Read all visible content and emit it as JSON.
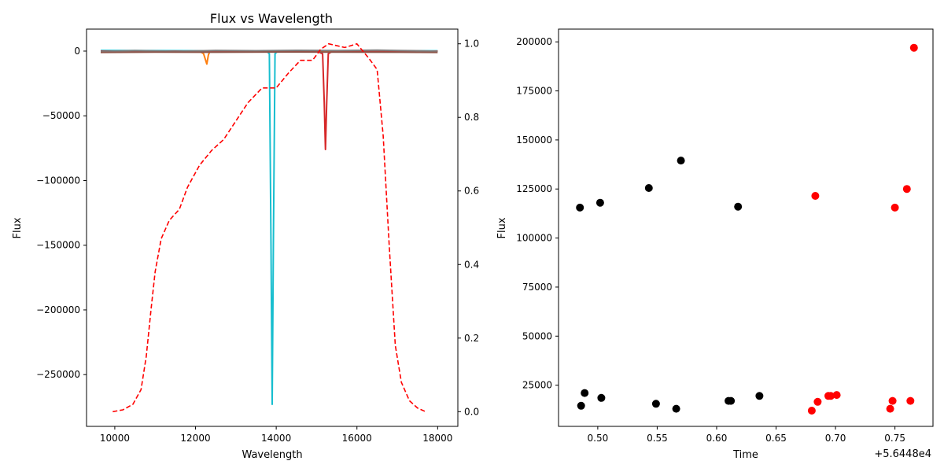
{
  "chart_data": [
    {
      "type": "line",
      "title": "Flux vs Wavelength",
      "xlabel": "Wavelength",
      "ylabel": "Flux",
      "xlim": [
        9300,
        18500
      ],
      "ylim": [
        -290000,
        17000
      ],
      "xticks": [
        10000,
        12000,
        14000,
        16000,
        18000
      ],
      "yticks": [
        0,
        -50000,
        -100000,
        -150000,
        -200000,
        -250000
      ],
      "xtick_labels": [
        "10000",
        "12000",
        "14000",
        "16000",
        "18000"
      ],
      "ytick_labels": [
        "0",
        "−50000",
        "−100000",
        "−150000",
        "−200000",
        "−250000"
      ],
      "secondary_ylim": [
        -0.04,
        1.04
      ],
      "secondary_yticks": [
        0.0,
        0.2,
        0.4,
        0.6,
        0.8,
        1.0
      ],
      "secondary_ytick_labels": [
        "0.0",
        "0.2",
        "0.4",
        "0.6",
        "0.8",
        "1.0"
      ],
      "series": [
        {
          "color": "#17becf",
          "style": "solid",
          "x": [
            9650,
            12000,
            13750,
            13830,
            13870,
            13900,
            13930,
            13970,
            14050,
            16000,
            18000
          ],
          "y": [
            500,
            300,
            200,
            -2000,
            -150000,
            -273000,
            -150000,
            -2000,
            200,
            300,
            200
          ]
        },
        {
          "color": "#ff7f0e",
          "style": "solid",
          "x": [
            9650,
            12100,
            12200,
            12280,
            12320,
            12360,
            12500,
            16000,
            18000
          ],
          "y": [
            0,
            0,
            -2000,
            -10000,
            -3000,
            0,
            0,
            0,
            0
          ]
        },
        {
          "color": "#d62728",
          "style": "solid",
          "x": [
            9650,
            15000,
            15150,
            15190,
            15220,
            15250,
            15290,
            15400,
            18000
          ],
          "y": [
            0,
            0,
            -2000,
            -40000,
            -76000,
            -40000,
            -2000,
            0,
            0
          ]
        },
        {
          "color": "#7f7f7f",
          "style": "solid",
          "x": [
            9650,
            10500,
            11500,
            12500,
            13500,
            14500,
            15500,
            16500,
            17500,
            18000
          ],
          "y": [
            -300,
            400,
            -200,
            500,
            300,
            600,
            400,
            700,
            300,
            -200
          ]
        },
        {
          "color": "#8c564b",
          "style": "solid",
          "x": [
            9650,
            11000,
            12500,
            14000,
            15500,
            17000,
            18000
          ],
          "y": [
            -1000,
            -800,
            -900,
            -700,
            -800,
            -900,
            -1000
          ]
        },
        {
          "color": "#ff0000",
          "style": "dashed",
          "axis": "secondary",
          "x": [
            9950,
            10200,
            10450,
            10650,
            10780,
            10900,
            11000,
            11150,
            11350,
            11600,
            11800,
            12100,
            12400,
            12700,
            13000,
            13300,
            13650,
            14000,
            14300,
            14600,
            14900,
            15100,
            15300,
            15700,
            16000,
            16300,
            16500,
            16650,
            16800,
            16950,
            17100,
            17300,
            17500,
            17700
          ],
          "y": [
            0.0,
            0.005,
            0.02,
            0.06,
            0.15,
            0.28,
            0.38,
            0.47,
            0.52,
            0.55,
            0.61,
            0.67,
            0.71,
            0.74,
            0.79,
            0.84,
            0.88,
            0.88,
            0.92,
            0.955,
            0.955,
            0.985,
            1.0,
            0.99,
            1.0,
            0.96,
            0.93,
            0.75,
            0.45,
            0.18,
            0.08,
            0.03,
            0.01,
            0.0
          ]
        }
      ]
    },
    {
      "type": "scatter",
      "xlabel": "Time",
      "ylabel": "Flux",
      "offset_label": "+5.6448e4",
      "xlim": [
        0.467,
        0.782
      ],
      "ylim": [
        4000,
        206500
      ],
      "xticks": [
        0.5,
        0.55,
        0.6,
        0.65,
        0.7,
        0.75
      ],
      "xtick_labels": [
        "0.50",
        "0.55",
        "0.60",
        "0.65",
        "0.70",
        "0.75"
      ],
      "yticks": [
        25000,
        50000,
        75000,
        100000,
        125000,
        150000,
        175000,
        200000
      ],
      "ytick_labels": [
        "25000",
        "50000",
        "75000",
        "100000",
        "125000",
        "150000",
        "175000",
        "200000"
      ],
      "series": [
        {
          "color": "#000000",
          "x": [
            0.485,
            0.486,
            0.489,
            0.502,
            0.503,
            0.543,
            0.549,
            0.566,
            0.57,
            0.61,
            0.612,
            0.618,
            0.636
          ],
          "y": [
            115500,
            14500,
            21000,
            118000,
            18500,
            125500,
            15500,
            13000,
            139500,
            17000,
            17000,
            116000,
            19500
          ]
        },
        {
          "color": "#ff0000",
          "x": [
            0.68,
            0.683,
            0.685,
            0.694,
            0.696,
            0.701,
            0.746,
            0.748,
            0.75,
            0.76,
            0.763,
            0.766
          ],
          "y": [
            12000,
            121500,
            16500,
            19500,
            19500,
            20000,
            13000,
            17000,
            115500,
            125000,
            17000,
            197000
          ]
        }
      ]
    }
  ]
}
